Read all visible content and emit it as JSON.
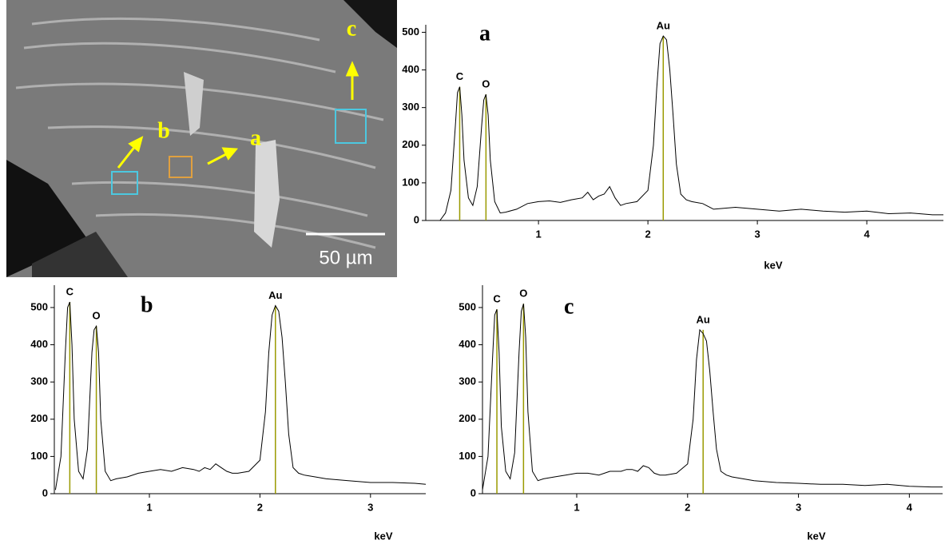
{
  "sem_image": {
    "labels": [
      "a",
      "b",
      "c"
    ],
    "scale_bar": "50 µm"
  },
  "chart_data": [
    {
      "type": "line",
      "panel_label": "a",
      "xlabel": "keV",
      "color": "#000000",
      "marker_color": "#9a9a00",
      "xlim": [
        -0.03,
        4.7
      ],
      "ylim": [
        0,
        520
      ],
      "xticks": [
        1,
        2,
        3,
        4
      ],
      "yticks": [
        0,
        100,
        200,
        300,
        400,
        500
      ],
      "markers": [
        {
          "label": "C",
          "x": 0.28
        },
        {
          "label": "O",
          "x": 0.52
        },
        {
          "label": "Au",
          "x": 2.14
        }
      ],
      "x": [
        0.1,
        0.15,
        0.2,
        0.24,
        0.26,
        0.28,
        0.3,
        0.32,
        0.36,
        0.4,
        0.44,
        0.48,
        0.5,
        0.52,
        0.54,
        0.56,
        0.6,
        0.65,
        0.7,
        0.8,
        0.9,
        1.0,
        1.1,
        1.2,
        1.3,
        1.4,
        1.45,
        1.5,
        1.55,
        1.6,
        1.65,
        1.7,
        1.75,
        1.8,
        1.9,
        2.0,
        2.05,
        2.08,
        2.11,
        2.14,
        2.17,
        2.2,
        2.23,
        2.26,
        2.3,
        2.35,
        2.4,
        2.5,
        2.6,
        2.8,
        3.0,
        3.2,
        3.4,
        3.6,
        3.8,
        4.0,
        4.2,
        4.4,
        4.6,
        4.7
      ],
      "values": [
        0,
        20,
        80,
        250,
        340,
        355,
        280,
        160,
        60,
        40,
        90,
        250,
        320,
        335,
        280,
        160,
        50,
        20,
        22,
        30,
        45,
        50,
        52,
        48,
        55,
        60,
        75,
        55,
        65,
        70,
        90,
        60,
        40,
        45,
        50,
        80,
        200,
        350,
        470,
        490,
        480,
        400,
        280,
        150,
        70,
        55,
        50,
        45,
        30,
        35,
        30,
        25,
        30,
        25,
        22,
        25,
        18,
        20,
        15,
        15
      ]
    },
    {
      "type": "line",
      "panel_label": "b",
      "xlabel": "keV",
      "color": "#000000",
      "marker_color": "#9a9a00",
      "xlim": [
        0.14,
        3.5
      ],
      "ylim": [
        0,
        560
      ],
      "xticks": [
        1,
        2,
        3
      ],
      "yticks": [
        0,
        100,
        200,
        300,
        400,
        500
      ],
      "markers": [
        {
          "label": "C",
          "x": 0.28
        },
        {
          "label": "O",
          "x": 0.52
        },
        {
          "label": "Au",
          "x": 2.14
        }
      ],
      "x": [
        0.15,
        0.2,
        0.24,
        0.26,
        0.28,
        0.3,
        0.32,
        0.36,
        0.4,
        0.44,
        0.48,
        0.5,
        0.52,
        0.54,
        0.56,
        0.6,
        0.65,
        0.7,
        0.8,
        0.9,
        1.0,
        1.1,
        1.2,
        1.3,
        1.4,
        1.45,
        1.5,
        1.55,
        1.6,
        1.65,
        1.7,
        1.75,
        1.8,
        1.9,
        2.0,
        2.05,
        2.08,
        2.11,
        2.14,
        2.17,
        2.2,
        2.23,
        2.26,
        2.3,
        2.35,
        2.4,
        2.5,
        2.6,
        2.8,
        3.0,
        3.2,
        3.4,
        3.5
      ],
      "values": [
        10,
        100,
        380,
        500,
        515,
        400,
        200,
        60,
        40,
        120,
        380,
        440,
        450,
        380,
        200,
        60,
        35,
        40,
        45,
        55,
        60,
        65,
        60,
        70,
        65,
        60,
        70,
        65,
        80,
        70,
        60,
        55,
        55,
        60,
        90,
        220,
        380,
        480,
        505,
        490,
        420,
        300,
        160,
        70,
        55,
        50,
        45,
        40,
        35,
        30,
        30,
        28,
        25
      ]
    },
    {
      "type": "line",
      "panel_label": "c",
      "xlabel": "keV",
      "color": "#000000",
      "marker_color": "#9a9a00",
      "xlim": [
        0.15,
        4.3
      ],
      "ylim": [
        0,
        560
      ],
      "xticks": [
        1,
        2,
        3,
        4
      ],
      "yticks": [
        0,
        100,
        200,
        300,
        400,
        500
      ],
      "markers": [
        {
          "label": "C",
          "x": 0.28
        },
        {
          "label": "O",
          "x": 0.52
        },
        {
          "label": "Au",
          "x": 2.14
        }
      ],
      "x": [
        0.15,
        0.2,
        0.24,
        0.26,
        0.28,
        0.3,
        0.32,
        0.36,
        0.4,
        0.44,
        0.48,
        0.5,
        0.52,
        0.54,
        0.56,
        0.6,
        0.65,
        0.7,
        0.8,
        0.9,
        1.0,
        1.1,
        1.2,
        1.3,
        1.4,
        1.45,
        1.5,
        1.55,
        1.6,
        1.65,
        1.7,
        1.75,
        1.8,
        1.9,
        2.0,
        2.05,
        2.08,
        2.11,
        2.14,
        2.17,
        2.2,
        2.23,
        2.26,
        2.3,
        2.35,
        2.4,
        2.5,
        2.6,
        2.8,
        3.0,
        3.2,
        3.4,
        3.6,
        3.8,
        4.0,
        4.2,
        4.3
      ],
      "values": [
        10,
        100,
        360,
        480,
        495,
        380,
        180,
        60,
        40,
        110,
        380,
        490,
        510,
        420,
        220,
        60,
        35,
        40,
        45,
        50,
        55,
        55,
        50,
        60,
        60,
        65,
        65,
        60,
        75,
        70,
        55,
        50,
        50,
        55,
        80,
        200,
        360,
        440,
        430,
        410,
        330,
        220,
        120,
        60,
        50,
        45,
        40,
        35,
        30,
        28,
        25,
        25,
        22,
        25,
        20,
        18,
        18
      ]
    }
  ]
}
